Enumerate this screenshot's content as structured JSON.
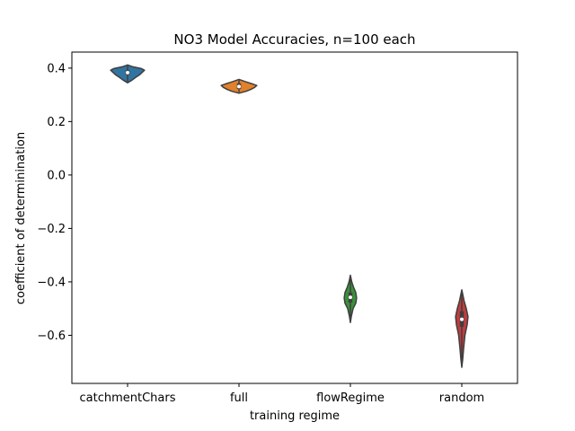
{
  "chart_data": {
    "type": "violin",
    "title": "NO3 Model Accuracies, n=100 each",
    "xlabel": "training regime",
    "ylabel": "coefficient of determinination",
    "ylim": [
      -0.78,
      0.46
    ],
    "yticks": [
      0.4,
      0.2,
      0.0,
      -0.2,
      -0.4,
      -0.6
    ],
    "ytick_labels": [
      "0.4",
      "0.2",
      "0.0",
      "−0.2",
      "−0.4",
      "−0.6"
    ],
    "grid": false,
    "categories": [
      "catchmentChars",
      "full",
      "flowRegime",
      "random"
    ],
    "series": [
      {
        "category": "catchmentChars",
        "color": "#3274a1",
        "median": 0.383,
        "q1": 0.375,
        "q3": 0.392,
        "min": 0.35,
        "max": 0.408,
        "density": [
          [
            0.345,
            0.0
          ],
          [
            0.355,
            0.1
          ],
          [
            0.365,
            0.18
          ],
          [
            0.375,
            0.27
          ],
          [
            0.383,
            0.32
          ],
          [
            0.392,
            0.38
          ],
          [
            0.398,
            0.31
          ],
          [
            0.405,
            0.12
          ],
          [
            0.412,
            0.0
          ]
        ]
      },
      {
        "category": "full",
        "color": "#e1812c",
        "median": 0.331,
        "q1": 0.322,
        "q3": 0.343,
        "min": 0.31,
        "max": 0.355,
        "density": [
          [
            0.306,
            0.0
          ],
          [
            0.313,
            0.16
          ],
          [
            0.32,
            0.26
          ],
          [
            0.328,
            0.35
          ],
          [
            0.335,
            0.4
          ],
          [
            0.342,
            0.28
          ],
          [
            0.35,
            0.13
          ],
          [
            0.358,
            0.0
          ]
        ]
      },
      {
        "category": "flowRegime",
        "color": "#3a923a",
        "median": -0.458,
        "q1": -0.477,
        "q3": -0.44,
        "min": -0.54,
        "max": -0.385,
        "density": [
          [
            -0.552,
            0.0
          ],
          [
            -0.53,
            0.02
          ],
          [
            -0.5,
            0.06
          ],
          [
            -0.48,
            0.12
          ],
          [
            -0.46,
            0.14
          ],
          [
            -0.44,
            0.12
          ],
          [
            -0.42,
            0.07
          ],
          [
            -0.4,
            0.03
          ],
          [
            -0.375,
            0.0
          ]
        ]
      },
      {
        "category": "random",
        "color": "#c03d3e",
        "median": -0.54,
        "q1": -0.568,
        "q3": -0.51,
        "min": -0.71,
        "max": -0.44,
        "density": [
          [
            -0.72,
            0.0
          ],
          [
            -0.69,
            0.02
          ],
          [
            -0.65,
            0.04
          ],
          [
            -0.6,
            0.07
          ],
          [
            -0.56,
            0.12
          ],
          [
            -0.53,
            0.14
          ],
          [
            -0.5,
            0.1
          ],
          [
            -0.47,
            0.05
          ],
          [
            -0.43,
            0.0
          ]
        ]
      }
    ]
  }
}
